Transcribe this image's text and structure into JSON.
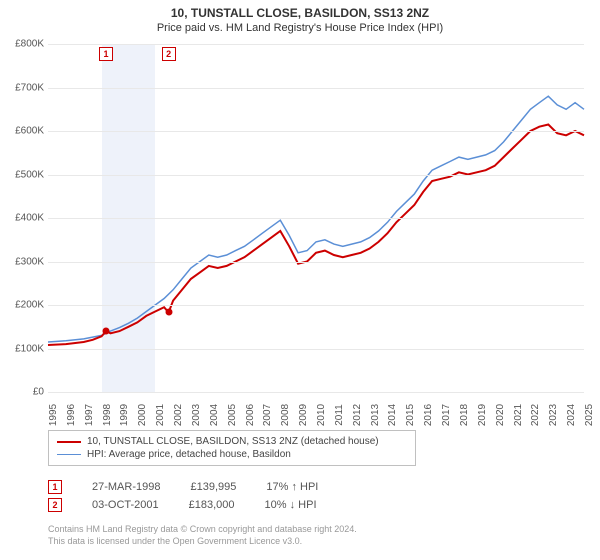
{
  "title": "10, TUNSTALL CLOSE, BASILDON, SS13 2NZ",
  "subtitle": "Price paid vs. HM Land Registry's House Price Index (HPI)",
  "chart": {
    "type": "line",
    "ylim": [
      0,
      800000
    ],
    "ytick_step": 100000,
    "y_format_prefix": "£",
    "y_format_suffix": "K",
    "y_format_divisor": 1000,
    "xlim": [
      1995,
      2025
    ],
    "xticks": [
      1995,
      1996,
      1997,
      1998,
      1999,
      2000,
      2001,
      2002,
      2003,
      2004,
      2005,
      2006,
      2007,
      2008,
      2009,
      2010,
      2011,
      2012,
      2013,
      2014,
      2015,
      2016,
      2017,
      2018,
      2019,
      2020,
      2021,
      2022,
      2023,
      2024,
      2025
    ],
    "background_color": "#ffffff",
    "grid_color": "#e8e8e8",
    "highlight_band_color": "#eef2fa",
    "highlight_band": [
      1998,
      2001
    ],
    "axis_fontsize": 10,
    "title_fontsize": 12,
    "series": [
      {
        "id": "property",
        "label": "10, TUNSTALL CLOSE, BASILDON, SS13 2NZ (detached house)",
        "color": "#cc0000",
        "line_width": 2,
        "points": [
          [
            1995,
            108000
          ],
          [
            1996,
            110000
          ],
          [
            1997,
            115000
          ],
          [
            1997.5,
            120000
          ],
          [
            1998,
            128000
          ],
          [
            1998.25,
            140000
          ],
          [
            1998.5,
            135000
          ],
          [
            1999,
            140000
          ],
          [
            1999.5,
            150000
          ],
          [
            2000,
            160000
          ],
          [
            2000.5,
            175000
          ],
          [
            2001,
            185000
          ],
          [
            2001.5,
            195000
          ],
          [
            2001.75,
            183000
          ],
          [
            2002,
            210000
          ],
          [
            2002.5,
            235000
          ],
          [
            2003,
            260000
          ],
          [
            2003.5,
            275000
          ],
          [
            2004,
            290000
          ],
          [
            2004.5,
            285000
          ],
          [
            2005,
            290000
          ],
          [
            2005.5,
            300000
          ],
          [
            2006,
            310000
          ],
          [
            2006.5,
            325000
          ],
          [
            2007,
            340000
          ],
          [
            2007.5,
            355000
          ],
          [
            2008,
            370000
          ],
          [
            2008.5,
            335000
          ],
          [
            2009,
            295000
          ],
          [
            2009.5,
            300000
          ],
          [
            2010,
            320000
          ],
          [
            2010.5,
            325000
          ],
          [
            2011,
            315000
          ],
          [
            2011.5,
            310000
          ],
          [
            2012,
            315000
          ],
          [
            2012.5,
            320000
          ],
          [
            2013,
            330000
          ],
          [
            2013.5,
            345000
          ],
          [
            2014,
            365000
          ],
          [
            2014.5,
            390000
          ],
          [
            2015,
            410000
          ],
          [
            2015.5,
            430000
          ],
          [
            2016,
            460000
          ],
          [
            2016.5,
            485000
          ],
          [
            2017,
            490000
          ],
          [
            2017.5,
            495000
          ],
          [
            2018,
            505000
          ],
          [
            2018.5,
            500000
          ],
          [
            2019,
            505000
          ],
          [
            2019.5,
            510000
          ],
          [
            2020,
            520000
          ],
          [
            2020.5,
            540000
          ],
          [
            2021,
            560000
          ],
          [
            2021.5,
            580000
          ],
          [
            2022,
            600000
          ],
          [
            2022.5,
            610000
          ],
          [
            2023,
            615000
          ],
          [
            2023.5,
            595000
          ],
          [
            2024,
            590000
          ],
          [
            2024.5,
            600000
          ],
          [
            2025,
            590000
          ]
        ]
      },
      {
        "id": "hpi",
        "label": "HPI: Average price, detached house, Basildon",
        "color": "#5b8fd6",
        "line_width": 1.5,
        "points": [
          [
            1995,
            115000
          ],
          [
            1996,
            118000
          ],
          [
            1997,
            122000
          ],
          [
            1998,
            130000
          ],
          [
            1998.5,
            140000
          ],
          [
            1999,
            148000
          ],
          [
            1999.5,
            158000
          ],
          [
            2000,
            170000
          ],
          [
            2000.5,
            185000
          ],
          [
            2001,
            200000
          ],
          [
            2001.5,
            215000
          ],
          [
            2002,
            235000
          ],
          [
            2002.5,
            260000
          ],
          [
            2003,
            285000
          ],
          [
            2003.5,
            300000
          ],
          [
            2004,
            315000
          ],
          [
            2004.5,
            310000
          ],
          [
            2005,
            315000
          ],
          [
            2005.5,
            325000
          ],
          [
            2006,
            335000
          ],
          [
            2006.5,
            350000
          ],
          [
            2007,
            365000
          ],
          [
            2007.5,
            380000
          ],
          [
            2008,
            395000
          ],
          [
            2008.5,
            360000
          ],
          [
            2009,
            320000
          ],
          [
            2009.5,
            325000
          ],
          [
            2010,
            345000
          ],
          [
            2010.5,
            350000
          ],
          [
            2011,
            340000
          ],
          [
            2011.5,
            335000
          ],
          [
            2012,
            340000
          ],
          [
            2012.5,
            345000
          ],
          [
            2013,
            355000
          ],
          [
            2013.5,
            370000
          ],
          [
            2014,
            390000
          ],
          [
            2014.5,
            415000
          ],
          [
            2015,
            435000
          ],
          [
            2015.5,
            455000
          ],
          [
            2016,
            485000
          ],
          [
            2016.5,
            510000
          ],
          [
            2017,
            520000
          ],
          [
            2017.5,
            530000
          ],
          [
            2018,
            540000
          ],
          [
            2018.5,
            535000
          ],
          [
            2019,
            540000
          ],
          [
            2019.5,
            545000
          ],
          [
            2020,
            555000
          ],
          [
            2020.5,
            575000
          ],
          [
            2021,
            600000
          ],
          [
            2021.5,
            625000
          ],
          [
            2022,
            650000
          ],
          [
            2022.5,
            665000
          ],
          [
            2023,
            680000
          ],
          [
            2023.5,
            660000
          ],
          [
            2024,
            650000
          ],
          [
            2024.5,
            665000
          ],
          [
            2025,
            650000
          ]
        ]
      }
    ],
    "markers": [
      {
        "index": "1",
        "x": 1998.25,
        "y": 140000
      },
      {
        "index": "2",
        "x": 2001.75,
        "y": 183000
      }
    ]
  },
  "legend": {
    "border_color": "#c0c0c0",
    "fontsize": 10
  },
  "sales": [
    {
      "index": "1",
      "date": "27-MAR-1998",
      "price": "£139,995",
      "delta": "17% ↑ HPI"
    },
    {
      "index": "2",
      "date": "03-OCT-2001",
      "price": "£183,000",
      "delta": "10% ↓ HPI"
    }
  ],
  "license": {
    "line1": "Contains HM Land Registry data © Crown copyright and database right 2024.",
    "line2": "This data is licensed under the Open Government Licence v3.0."
  }
}
